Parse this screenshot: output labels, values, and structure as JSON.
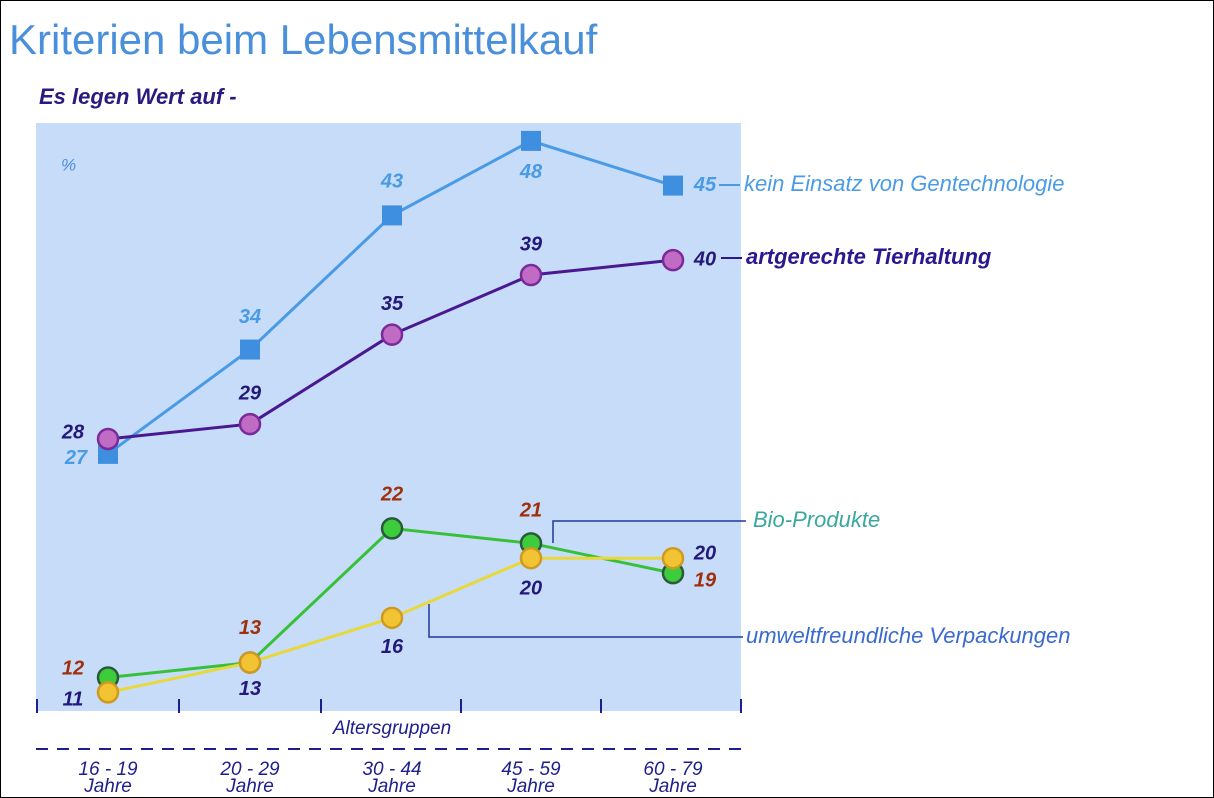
{
  "chart_data": {
    "type": "line",
    "title": "Kriterien beim Lebensmittelkauf",
    "subtitle": "Es legen Wert auf -",
    "y_label": "%",
    "x_label": "Altersgruppen",
    "categories": [
      "16 - 19\nJahre",
      "20 - 29\nJahre",
      "30 - 44\nJahre",
      "45 - 59\nJahre",
      "60 - 79\nJahre"
    ],
    "ylim": [
      9.75,
      49.2
    ],
    "series": [
      {
        "name": "kein Einsatz von Gentechnologie",
        "color": "#4a9be6",
        "marker": "square",
        "values": [
          27,
          34,
          43,
          48,
          45
        ]
      },
      {
        "name": "artgerechte Tierhaltung",
        "color": "#4a1890",
        "marker": "circle",
        "values": [
          28,
          29,
          35,
          39,
          40
        ]
      },
      {
        "name": "Bio-Produkte",
        "color": "#38c038",
        "marker": "circle",
        "values": [
          12,
          13,
          22,
          21,
          19
        ]
      },
      {
        "name": "umweltfreundliche Verpackungen",
        "color": "#e8d83a",
        "marker": "circle",
        "values": [
          11,
          13,
          16,
          20,
          20
        ]
      }
    ]
  }
}
